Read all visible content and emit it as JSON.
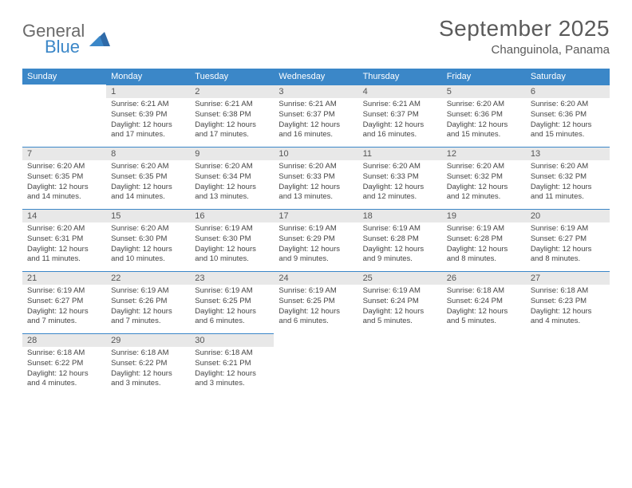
{
  "logo": {
    "part1": "General",
    "part2": "Blue"
  },
  "title": "September 2025",
  "location": "Changuinola, Panama",
  "colors": {
    "header_bg": "#3b87c8",
    "header_text": "#ffffff",
    "daybar_bg": "#e8e8e8",
    "daybar_border": "#3b87c8",
    "body_text": "#444444",
    "title_text": "#5a5a5a",
    "logo_gray": "#6a6a6a",
    "logo_blue": "#3b87c8",
    "page_bg": "#ffffff"
  },
  "weekdays": [
    "Sunday",
    "Monday",
    "Tuesday",
    "Wednesday",
    "Thursday",
    "Friday",
    "Saturday"
  ],
  "weeks": [
    [
      null,
      {
        "n": "1",
        "sunrise": "Sunrise: 6:21 AM",
        "sunset": "Sunset: 6:39 PM",
        "daylight": "Daylight: 12 hours and 17 minutes."
      },
      {
        "n": "2",
        "sunrise": "Sunrise: 6:21 AM",
        "sunset": "Sunset: 6:38 PM",
        "daylight": "Daylight: 12 hours and 17 minutes."
      },
      {
        "n": "3",
        "sunrise": "Sunrise: 6:21 AM",
        "sunset": "Sunset: 6:37 PM",
        "daylight": "Daylight: 12 hours and 16 minutes."
      },
      {
        "n": "4",
        "sunrise": "Sunrise: 6:21 AM",
        "sunset": "Sunset: 6:37 PM",
        "daylight": "Daylight: 12 hours and 16 minutes."
      },
      {
        "n": "5",
        "sunrise": "Sunrise: 6:20 AM",
        "sunset": "Sunset: 6:36 PM",
        "daylight": "Daylight: 12 hours and 15 minutes."
      },
      {
        "n": "6",
        "sunrise": "Sunrise: 6:20 AM",
        "sunset": "Sunset: 6:36 PM",
        "daylight": "Daylight: 12 hours and 15 minutes."
      }
    ],
    [
      {
        "n": "7",
        "sunrise": "Sunrise: 6:20 AM",
        "sunset": "Sunset: 6:35 PM",
        "daylight": "Daylight: 12 hours and 14 minutes."
      },
      {
        "n": "8",
        "sunrise": "Sunrise: 6:20 AM",
        "sunset": "Sunset: 6:35 PM",
        "daylight": "Daylight: 12 hours and 14 minutes."
      },
      {
        "n": "9",
        "sunrise": "Sunrise: 6:20 AM",
        "sunset": "Sunset: 6:34 PM",
        "daylight": "Daylight: 12 hours and 13 minutes."
      },
      {
        "n": "10",
        "sunrise": "Sunrise: 6:20 AM",
        "sunset": "Sunset: 6:33 PM",
        "daylight": "Daylight: 12 hours and 13 minutes."
      },
      {
        "n": "11",
        "sunrise": "Sunrise: 6:20 AM",
        "sunset": "Sunset: 6:33 PM",
        "daylight": "Daylight: 12 hours and 12 minutes."
      },
      {
        "n": "12",
        "sunrise": "Sunrise: 6:20 AM",
        "sunset": "Sunset: 6:32 PM",
        "daylight": "Daylight: 12 hours and 12 minutes."
      },
      {
        "n": "13",
        "sunrise": "Sunrise: 6:20 AM",
        "sunset": "Sunset: 6:32 PM",
        "daylight": "Daylight: 12 hours and 11 minutes."
      }
    ],
    [
      {
        "n": "14",
        "sunrise": "Sunrise: 6:20 AM",
        "sunset": "Sunset: 6:31 PM",
        "daylight": "Daylight: 12 hours and 11 minutes."
      },
      {
        "n": "15",
        "sunrise": "Sunrise: 6:20 AM",
        "sunset": "Sunset: 6:30 PM",
        "daylight": "Daylight: 12 hours and 10 minutes."
      },
      {
        "n": "16",
        "sunrise": "Sunrise: 6:19 AM",
        "sunset": "Sunset: 6:30 PM",
        "daylight": "Daylight: 12 hours and 10 minutes."
      },
      {
        "n": "17",
        "sunrise": "Sunrise: 6:19 AM",
        "sunset": "Sunset: 6:29 PM",
        "daylight": "Daylight: 12 hours and 9 minutes."
      },
      {
        "n": "18",
        "sunrise": "Sunrise: 6:19 AM",
        "sunset": "Sunset: 6:28 PM",
        "daylight": "Daylight: 12 hours and 9 minutes."
      },
      {
        "n": "19",
        "sunrise": "Sunrise: 6:19 AM",
        "sunset": "Sunset: 6:28 PM",
        "daylight": "Daylight: 12 hours and 8 minutes."
      },
      {
        "n": "20",
        "sunrise": "Sunrise: 6:19 AM",
        "sunset": "Sunset: 6:27 PM",
        "daylight": "Daylight: 12 hours and 8 minutes."
      }
    ],
    [
      {
        "n": "21",
        "sunrise": "Sunrise: 6:19 AM",
        "sunset": "Sunset: 6:27 PM",
        "daylight": "Daylight: 12 hours and 7 minutes."
      },
      {
        "n": "22",
        "sunrise": "Sunrise: 6:19 AM",
        "sunset": "Sunset: 6:26 PM",
        "daylight": "Daylight: 12 hours and 7 minutes."
      },
      {
        "n": "23",
        "sunrise": "Sunrise: 6:19 AM",
        "sunset": "Sunset: 6:25 PM",
        "daylight": "Daylight: 12 hours and 6 minutes."
      },
      {
        "n": "24",
        "sunrise": "Sunrise: 6:19 AM",
        "sunset": "Sunset: 6:25 PM",
        "daylight": "Daylight: 12 hours and 6 minutes."
      },
      {
        "n": "25",
        "sunrise": "Sunrise: 6:19 AM",
        "sunset": "Sunset: 6:24 PM",
        "daylight": "Daylight: 12 hours and 5 minutes."
      },
      {
        "n": "26",
        "sunrise": "Sunrise: 6:18 AM",
        "sunset": "Sunset: 6:24 PM",
        "daylight": "Daylight: 12 hours and 5 minutes."
      },
      {
        "n": "27",
        "sunrise": "Sunrise: 6:18 AM",
        "sunset": "Sunset: 6:23 PM",
        "daylight": "Daylight: 12 hours and 4 minutes."
      }
    ],
    [
      {
        "n": "28",
        "sunrise": "Sunrise: 6:18 AM",
        "sunset": "Sunset: 6:22 PM",
        "daylight": "Daylight: 12 hours and 4 minutes."
      },
      {
        "n": "29",
        "sunrise": "Sunrise: 6:18 AM",
        "sunset": "Sunset: 6:22 PM",
        "daylight": "Daylight: 12 hours and 3 minutes."
      },
      {
        "n": "30",
        "sunrise": "Sunrise: 6:18 AM",
        "sunset": "Sunset: 6:21 PM",
        "daylight": "Daylight: 12 hours and 3 minutes."
      },
      null,
      null,
      null,
      null
    ]
  ]
}
